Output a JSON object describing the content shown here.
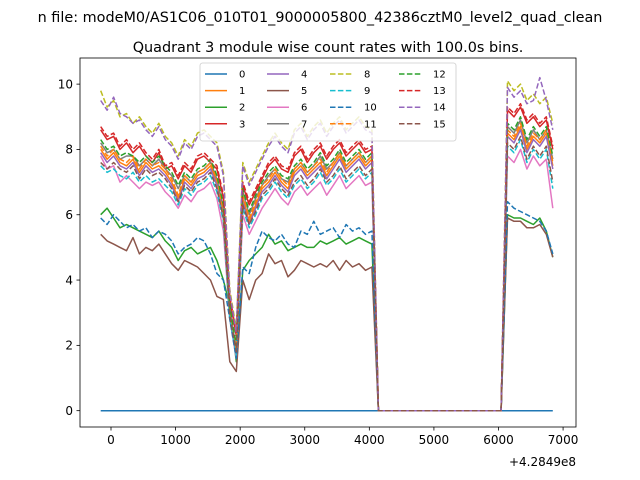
{
  "chart_data": {
    "type": "line",
    "suptitle": "n file: modeM0/AS1C06_010T01_9000005800_42386cztM0_level2_quad_clean",
    "title": "Quadrant 3 module wise count rates with 100.0s bins.",
    "xlabel": "",
    "ylabel": "",
    "x_offset_label": "+4.2849e8",
    "xlim": [
      -480,
      7200
    ],
    "ylim": [
      -0.5,
      10.8
    ],
    "xticks": [
      0,
      1000,
      2000,
      3000,
      4000,
      5000,
      6000,
      7000
    ],
    "yticks": [
      0,
      2,
      4,
      6,
      8,
      10
    ],
    "grid": false,
    "legend": {
      "position": "top-center",
      "columns": 4
    },
    "x": [
      -160,
      -60,
      40,
      140,
      240,
      340,
      440,
      540,
      640,
      740,
      840,
      940,
      1040,
      1140,
      1240,
      1340,
      1440,
      1540,
      1640,
      1740,
      1840,
      1940,
      2040,
      2140,
      2240,
      2340,
      2440,
      2540,
      2640,
      2740,
      2840,
      2940,
      3040,
      3140,
      3240,
      3340,
      3440,
      3540,
      3640,
      3740,
      3840,
      3940,
      4040,
      4140,
      5940,
      6040,
      6140,
      6240,
      6340,
      6440,
      6540,
      6640,
      6740,
      6840
    ],
    "series": [
      {
        "name": "0",
        "color": "#1f77b4",
        "dash": "solid",
        "values": [
          0,
          0,
          0,
          0,
          0,
          0,
          0,
          0,
          0,
          0,
          0,
          0,
          0,
          0,
          0,
          0,
          0,
          0,
          0,
          0,
          0,
          0,
          0,
          0,
          0,
          0,
          0,
          0,
          0,
          0,
          0,
          0,
          0,
          0,
          0,
          0,
          0,
          0,
          0,
          0,
          0,
          0,
          0,
          0,
          0,
          0,
          0,
          0,
          0,
          0,
          0,
          0,
          0,
          0
        ]
      },
      {
        "name": "1",
        "color": "#ff7f0e",
        "dash": "solid",
        "values": [
          8.0,
          7.7,
          7.9,
          7.6,
          7.5,
          7.7,
          7.3,
          7.6,
          7.4,
          7.5,
          7.3,
          7.0,
          6.5,
          7.1,
          6.9,
          7.2,
          7.3,
          7.5,
          7.0,
          6.0,
          3.0,
          1.8,
          6.5,
          5.8,
          6.3,
          6.8,
          7.0,
          7.3,
          7.0,
          6.8,
          7.3,
          7.5,
          7.2,
          7.4,
          7.6,
          7.2,
          7.5,
          7.8,
          7.4,
          7.6,
          7.8,
          7.5,
          7.7,
          0,
          0,
          0,
          8.5,
          8.3,
          8.7,
          8.0,
          8.4,
          8.2,
          8.5,
          7.5
        ]
      },
      {
        "name": "2",
        "color": "#2ca02c",
        "dash": "solid",
        "values": [
          6.0,
          6.2,
          5.9,
          5.6,
          5.7,
          5.6,
          5.5,
          5.4,
          5.3,
          5.5,
          5.2,
          5.0,
          4.6,
          4.9,
          5.0,
          4.8,
          4.9,
          5.0,
          4.6,
          4.0,
          3.2,
          1.5,
          4.3,
          4.6,
          4.8,
          5.0,
          5.4,
          5.1,
          5.2,
          4.9,
          5.0,
          5.1,
          5.0,
          5.0,
          5.2,
          5.1,
          5.2,
          5.3,
          5.1,
          5.2,
          5.3,
          5.2,
          5.1,
          0,
          0,
          0,
          6.0,
          5.9,
          5.9,
          5.8,
          5.7,
          5.9,
          5.5,
          4.7
        ]
      },
      {
        "name": "3",
        "color": "#d62728",
        "dash": "solid",
        "values": [
          8.6,
          8.3,
          8.4,
          8.0,
          8.2,
          7.9,
          8.1,
          7.8,
          7.6,
          7.9,
          7.4,
          7.5,
          7.1,
          7.5,
          7.3,
          7.7,
          7.8,
          7.6,
          7.4,
          6.5,
          3.4,
          2.3,
          6.9,
          6.3,
          6.7,
          7.1,
          7.5,
          7.7,
          7.4,
          7.3,
          7.8,
          8.0,
          7.6,
          7.9,
          8.1,
          7.7,
          8.0,
          8.2,
          7.8,
          8.0,
          8.2,
          7.9,
          8.0,
          0,
          0,
          0,
          9.2,
          9.0,
          9.3,
          8.8,
          9.0,
          8.7,
          8.9,
          8.0
        ]
      },
      {
        "name": "4",
        "color": "#9467bd",
        "dash": "solid",
        "values": [
          7.9,
          7.6,
          7.8,
          7.5,
          7.4,
          7.6,
          7.2,
          7.5,
          7.3,
          7.4,
          7.2,
          6.9,
          6.4,
          7.0,
          6.8,
          7.1,
          7.2,
          7.4,
          6.9,
          5.9,
          2.9,
          1.7,
          6.4,
          5.7,
          6.2,
          6.7,
          6.9,
          7.2,
          6.9,
          6.7,
          7.2,
          7.4,
          7.1,
          7.3,
          7.5,
          7.1,
          7.4,
          7.7,
          7.3,
          7.5,
          7.7,
          7.4,
          7.6,
          0,
          0,
          0,
          8.4,
          8.2,
          8.6,
          7.9,
          8.3,
          8.1,
          8.4,
          7.4
        ]
      },
      {
        "name": "5",
        "color": "#8c564b",
        "dash": "solid",
        "values": [
          5.4,
          5.2,
          5.1,
          5.0,
          4.9,
          5.3,
          4.8,
          5.0,
          4.9,
          5.1,
          4.8,
          4.5,
          4.3,
          4.6,
          4.5,
          4.4,
          4.2,
          4.0,
          3.5,
          3.4,
          1.5,
          1.2,
          4.0,
          3.4,
          4.0,
          4.2,
          4.8,
          4.5,
          4.6,
          4.1,
          4.3,
          4.6,
          4.5,
          4.4,
          4.5,
          4.4,
          4.6,
          4.3,
          4.6,
          4.4,
          4.5,
          4.3,
          4.4,
          0,
          0,
          0,
          5.9,
          5.8,
          5.8,
          5.6,
          5.6,
          5.7,
          5.4,
          4.7
        ]
      },
      {
        "name": "6",
        "color": "#e377c2",
        "dash": "solid",
        "values": [
          7.8,
          7.4,
          7.5,
          7.0,
          7.2,
          7.0,
          6.8,
          7.0,
          6.9,
          7.0,
          6.7,
          6.5,
          6.2,
          6.6,
          6.4,
          6.7,
          6.8,
          7.0,
          6.5,
          5.5,
          2.8,
          1.6,
          6.0,
          5.4,
          5.8,
          6.2,
          6.5,
          6.8,
          6.5,
          6.3,
          6.7,
          6.9,
          6.6,
          6.8,
          7.0,
          6.6,
          6.9,
          7.2,
          6.8,
          7.0,
          7.2,
          6.9,
          7.0,
          0,
          0,
          0,
          7.8,
          7.6,
          8.0,
          7.4,
          7.8,
          7.5,
          7.7,
          6.2
        ]
      },
      {
        "name": "7",
        "color": "#7f7f7f",
        "dash": "solid",
        "values": [
          8.2,
          7.9,
          8.0,
          7.7,
          7.8,
          7.8,
          7.5,
          7.7,
          7.5,
          7.7,
          7.4,
          7.2,
          6.8,
          7.2,
          7.0,
          7.3,
          7.4,
          7.6,
          7.1,
          6.2,
          3.1,
          1.9,
          6.7,
          6.0,
          6.5,
          6.9,
          7.2,
          7.4,
          7.1,
          7.0,
          7.4,
          7.6,
          7.3,
          7.5,
          7.8,
          7.4,
          7.6,
          7.9,
          7.5,
          7.7,
          7.9,
          7.6,
          7.8,
          0,
          0,
          0,
          8.7,
          8.5,
          8.9,
          8.2,
          8.6,
          8.3,
          8.6,
          7.7
        ]
      },
      {
        "name": "8",
        "color": "#bcbd22",
        "dash": "dashed",
        "values": [
          9.8,
          9.3,
          9.5,
          9.0,
          9.1,
          8.8,
          9.0,
          8.7,
          8.5,
          8.8,
          8.4,
          8.2,
          7.8,
          8.3,
          8.1,
          8.5,
          8.6,
          8.4,
          8.2,
          7.3,
          3.7,
          2.5,
          7.6,
          7.0,
          7.4,
          7.8,
          8.2,
          8.5,
          8.2,
          8.0,
          8.6,
          8.8,
          8.4,
          8.7,
          8.9,
          8.5,
          8.8,
          9.0,
          8.6,
          8.8,
          9.0,
          8.7,
          8.6,
          0,
          0,
          0,
          10.1,
          9.8,
          10.0,
          9.5,
          9.7,
          9.4,
          9.6,
          8.8
        ]
      },
      {
        "name": "9",
        "color": "#17becf",
        "dash": "dashed",
        "values": [
          7.5,
          7.3,
          7.4,
          7.2,
          7.1,
          7.3,
          7.0,
          7.2,
          7.0,
          7.1,
          6.9,
          6.7,
          6.3,
          6.8,
          6.6,
          6.9,
          7.0,
          7.2,
          6.7,
          5.8,
          2.8,
          1.7,
          6.2,
          5.6,
          6.0,
          6.5,
          6.7,
          7.0,
          6.7,
          6.5,
          6.9,
          7.1,
          6.8,
          7.0,
          7.3,
          6.9,
          7.1,
          7.4,
          7.0,
          7.2,
          7.4,
          7.1,
          7.3,
          0,
          0,
          0,
          8.1,
          7.9,
          8.3,
          7.6,
          8.0,
          7.7,
          8.0,
          6.8
        ]
      },
      {
        "name": "10",
        "color": "#1f77b4",
        "dash": "dashed",
        "values": [
          5.9,
          5.7,
          6.0,
          5.8,
          5.6,
          5.7,
          5.5,
          5.6,
          5.3,
          5.5,
          5.4,
          5.2,
          4.8,
          5.0,
          5.1,
          5.3,
          5.2,
          4.8,
          4.2,
          4.0,
          2.8,
          1.6,
          4.4,
          4.2,
          5.0,
          5.5,
          5.3,
          5.2,
          5.4,
          5.1,
          5.0,
          5.5,
          5.4,
          5.8,
          5.4,
          5.5,
          5.6,
          5.3,
          5.7,
          5.5,
          5.6,
          5.4,
          5.5,
          0,
          0,
          0,
          6.4,
          6.2,
          6.1,
          6.0,
          5.9,
          5.8,
          5.5,
          4.8
        ]
      },
      {
        "name": "11",
        "color": "#ff7f0e",
        "dash": "dashed",
        "values": [
          8.1,
          7.8,
          8.0,
          7.7,
          7.6,
          7.8,
          7.4,
          7.7,
          7.5,
          7.6,
          7.4,
          7.1,
          6.6,
          7.2,
          7.0,
          7.3,
          7.4,
          7.6,
          7.1,
          6.1,
          3.1,
          1.9,
          6.6,
          5.9,
          6.4,
          6.9,
          7.1,
          7.4,
          7.1,
          6.9,
          7.4,
          7.6,
          7.3,
          7.5,
          7.7,
          7.3,
          7.6,
          7.9,
          7.5,
          7.7,
          7.9,
          7.6,
          7.8,
          0,
          0,
          0,
          8.6,
          8.4,
          8.8,
          8.1,
          8.5,
          8.3,
          8.6,
          7.6
        ]
      },
      {
        "name": "12",
        "color": "#2ca02c",
        "dash": "dashed",
        "values": [
          8.3,
          8.0,
          8.1,
          7.8,
          7.9,
          7.8,
          7.6,
          7.8,
          7.6,
          7.8,
          7.5,
          7.3,
          6.9,
          7.3,
          7.1,
          7.4,
          7.5,
          7.7,
          7.2,
          6.3,
          3.2,
          2.0,
          6.8,
          6.1,
          6.6,
          7.0,
          7.3,
          7.5,
          7.2,
          7.1,
          7.5,
          7.7,
          7.4,
          7.6,
          7.9,
          7.5,
          7.7,
          8.0,
          7.6,
          7.8,
          8.0,
          7.7,
          7.9,
          0,
          0,
          0,
          8.8,
          8.6,
          9.0,
          8.3,
          8.7,
          8.4,
          8.7,
          7.8
        ]
      },
      {
        "name": "13",
        "color": "#d62728",
        "dash": "dashed",
        "values": [
          8.7,
          8.4,
          8.5,
          8.1,
          8.3,
          8.0,
          8.2,
          7.9,
          7.7,
          8.0,
          7.5,
          7.6,
          7.2,
          7.6,
          7.4,
          7.8,
          7.9,
          7.7,
          7.5,
          6.6,
          3.5,
          2.4,
          7.0,
          6.4,
          6.8,
          7.2,
          7.6,
          7.8,
          7.5,
          7.4,
          7.9,
          8.1,
          7.7,
          8.0,
          8.2,
          7.8,
          8.1,
          8.3,
          7.9,
          8.1,
          8.3,
          8.0,
          8.1,
          0,
          0,
          0,
          9.3,
          9.1,
          9.4,
          8.9,
          9.1,
          8.8,
          9.0,
          8.1
        ]
      },
      {
        "name": "14",
        "color": "#9467bd",
        "dash": "dashed",
        "values": [
          9.5,
          9.2,
          9.6,
          9.1,
          9.0,
          8.8,
          8.9,
          8.6,
          8.4,
          8.7,
          8.3,
          8.1,
          7.7,
          8.2,
          8.0,
          8.4,
          8.5,
          8.3,
          8.1,
          7.2,
          3.6,
          2.4,
          7.5,
          6.9,
          7.3,
          7.7,
          8.1,
          8.4,
          8.1,
          7.9,
          8.5,
          8.7,
          8.3,
          8.6,
          8.8,
          8.4,
          8.7,
          8.9,
          8.5,
          8.7,
          8.9,
          8.6,
          8.5,
          0,
          0,
          0,
          9.9,
          9.6,
          9.8,
          9.4,
          9.5,
          10.2,
          9.5,
          8.6
        ]
      },
      {
        "name": "15",
        "color": "#8c564b",
        "dash": "dashed",
        "values": [
          7.6,
          7.4,
          7.6,
          7.4,
          7.3,
          7.5,
          7.1,
          7.4,
          7.2,
          7.3,
          7.1,
          6.8,
          6.4,
          6.9,
          6.7,
          7.0,
          7.1,
          7.3,
          6.8,
          5.9,
          2.9,
          1.8,
          6.3,
          5.7,
          6.1,
          6.6,
          6.8,
          7.1,
          6.8,
          6.6,
          7.0,
          7.2,
          6.9,
          7.1,
          7.4,
          7.0,
          7.2,
          7.5,
          7.1,
          7.3,
          7.5,
          7.2,
          7.4,
          0,
          0,
          0,
          8.2,
          8.0,
          8.4,
          7.7,
          8.1,
          7.8,
          8.1,
          7.0
        ]
      }
    ]
  }
}
